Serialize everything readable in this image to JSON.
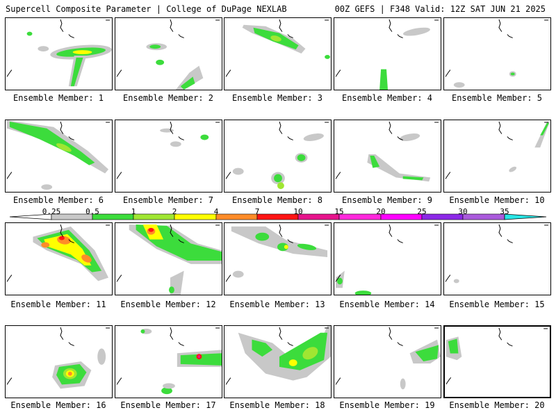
{
  "header": {
    "title_left": "Supercell Composite Parameter | College of DuPage NEXLAB",
    "title_right": "00Z GEFS | F348 Valid: 12Z SAT JUN 21 2025"
  },
  "members": [
    {
      "label": "Ensemble Member: 1"
    },
    {
      "label": "Ensemble Member: 2"
    },
    {
      "label": "Ensemble Member: 3"
    },
    {
      "label": "Ensemble Member: 4"
    },
    {
      "label": "Ensemble Member: 5"
    },
    {
      "label": "Ensemble Member: 6"
    },
    {
      "label": "Ensemble Member: 7"
    },
    {
      "label": "Ensemble Member: 8"
    },
    {
      "label": "Ensemble Member: 9"
    },
    {
      "label": "Ensemble Member: 10"
    },
    {
      "label": "Ensemble Member: 11"
    },
    {
      "label": "Ensemble Member: 12"
    },
    {
      "label": "Ensemble Member: 13"
    },
    {
      "label": "Ensemble Member: 14"
    },
    {
      "label": "Ensemble Member: 15"
    },
    {
      "label": "Ensemble Member: 16"
    },
    {
      "label": "Ensemble Member: 17"
    },
    {
      "label": "Ensemble Member: 18"
    },
    {
      "label": "Ensemble Member: 19"
    },
    {
      "label": "Ensemble Member: 20"
    }
  ],
  "colorbar": {
    "ticks": [
      "0.25",
      "0.5",
      "1",
      "2",
      "4",
      "7",
      "10",
      "15",
      "20",
      "25",
      "30",
      "35"
    ],
    "colors": [
      "#ffffff",
      "#c8c8c8",
      "#3cdc3c",
      "#a0e632",
      "#ffff00",
      "#ff8c28",
      "#ff1414",
      "#e6148c",
      "#ff28dc",
      "#ff00ff",
      "#8c28e6",
      "#aa5adc",
      "#28e6e6"
    ]
  },
  "colors": {
    "gray": "#c8c8c8",
    "green": "#3cdc3c",
    "lightgreen": "#a0e632",
    "yellow": "#ffff00",
    "orange": "#ff8c28",
    "red": "#ff1414",
    "magenta": "#e6148c"
  }
}
